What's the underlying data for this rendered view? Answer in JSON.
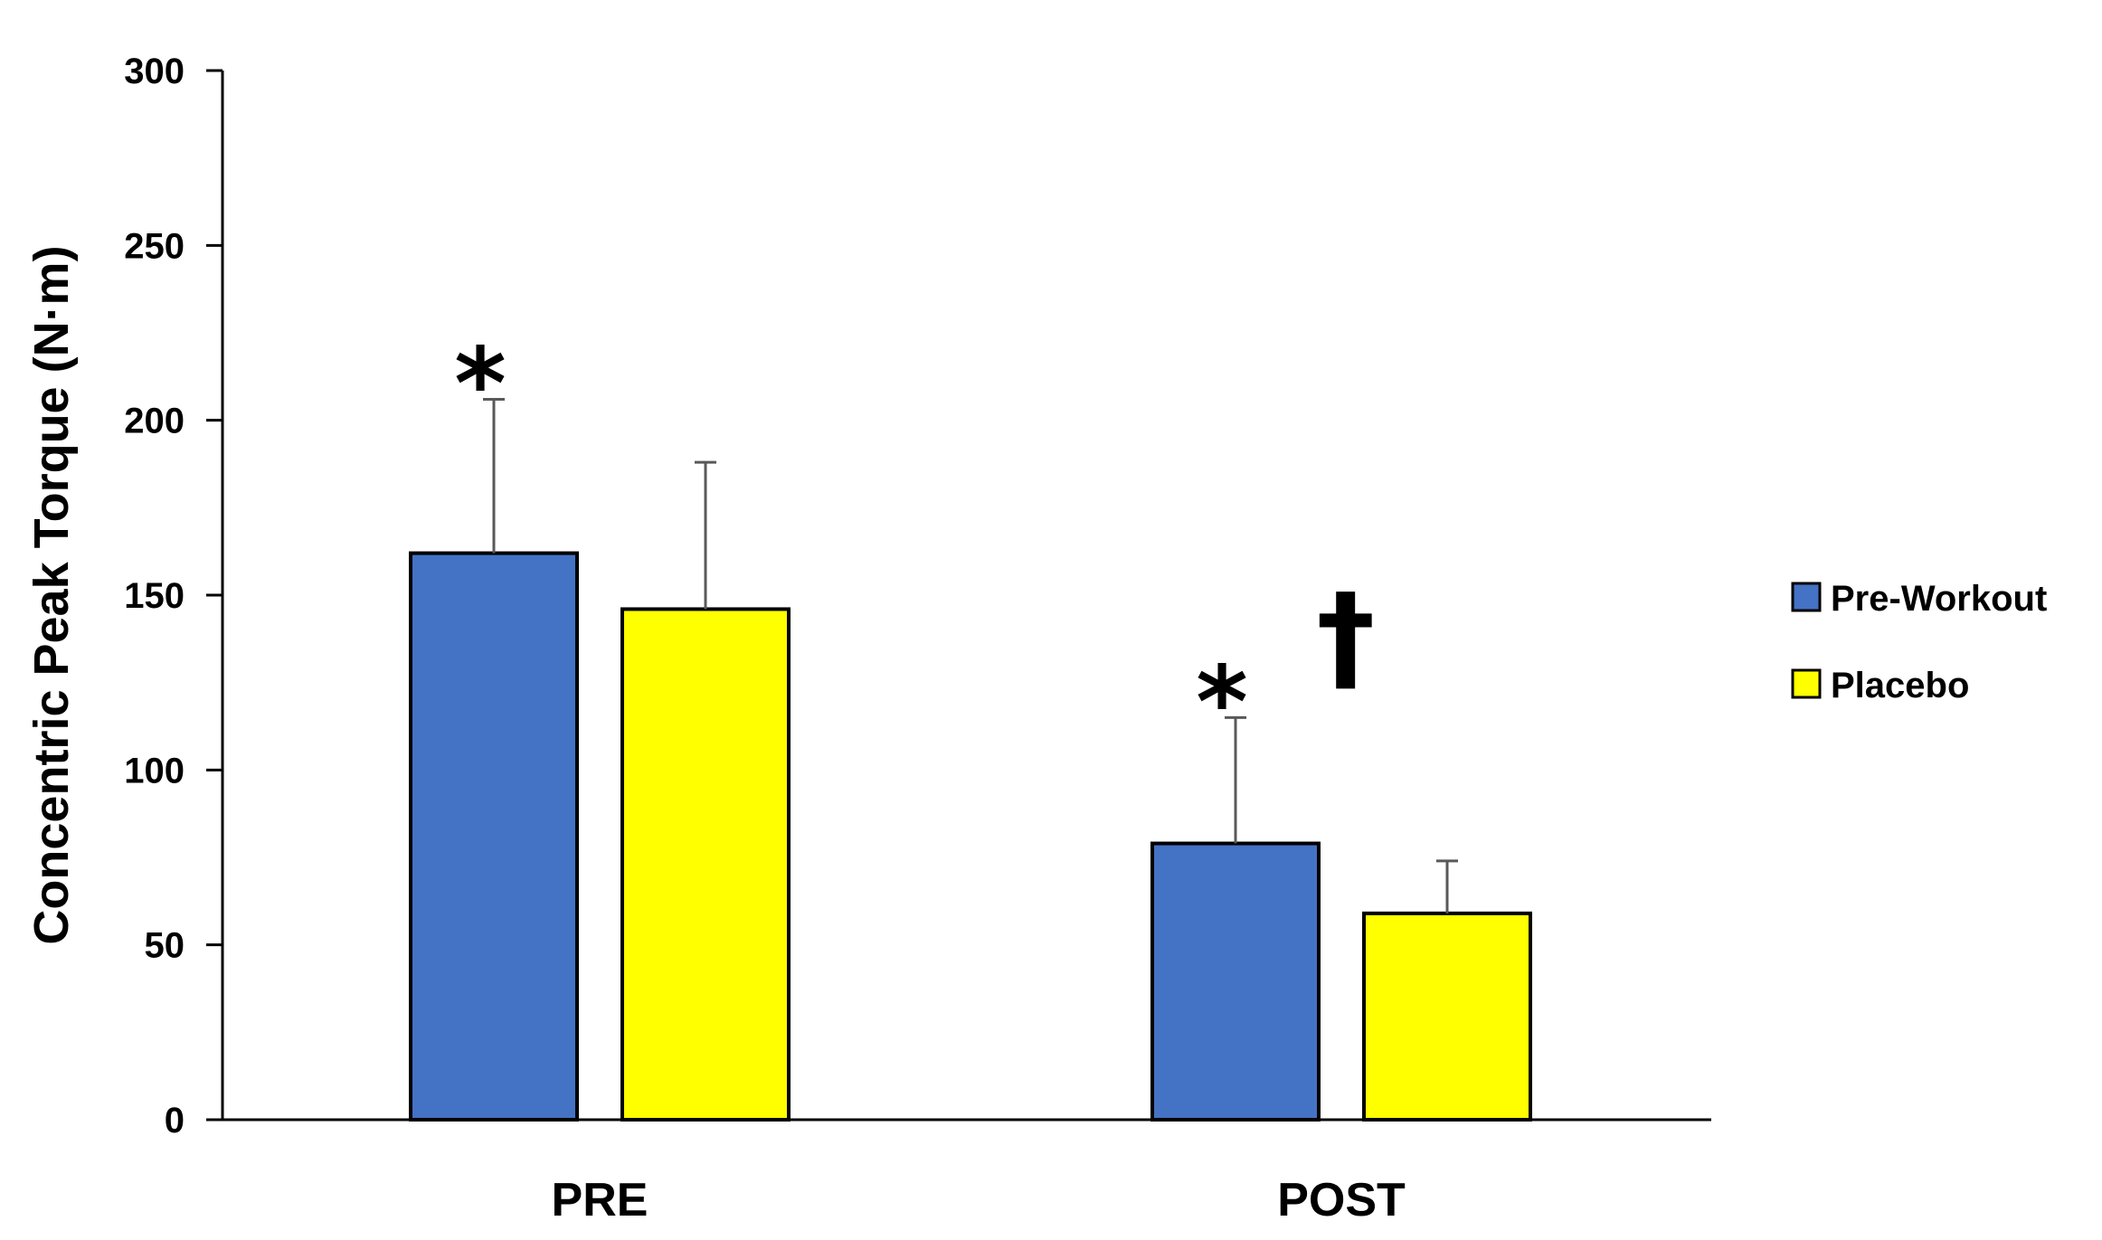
{
  "chart_data": {
    "type": "bar",
    "title": "",
    "xlabel": "",
    "ylabel": "Concentric Peak Torque (N·m)",
    "ylim": [
      0,
      300
    ],
    "yticks": [
      0,
      50,
      100,
      150,
      200,
      250,
      300
    ],
    "grid": false,
    "legend_position": "right",
    "categories": [
      "PRE",
      "POST"
    ],
    "series": [
      {
        "name": "Pre-Workout",
        "color": "#4472C4",
        "values": [
          162,
          79
        ],
        "errors": [
          44,
          36
        ]
      },
      {
        "name": "Placebo",
        "color": "#FFFF00",
        "values": [
          146,
          59
        ],
        "errors": [
          42,
          15
        ]
      }
    ],
    "annotations": [
      {
        "text": "*",
        "category": "PRE",
        "series": "Pre-Workout"
      },
      {
        "text": "*",
        "category": "POST",
        "series": "Pre-Workout"
      },
      {
        "text": "†",
        "category": "POST",
        "series": "between"
      }
    ]
  }
}
